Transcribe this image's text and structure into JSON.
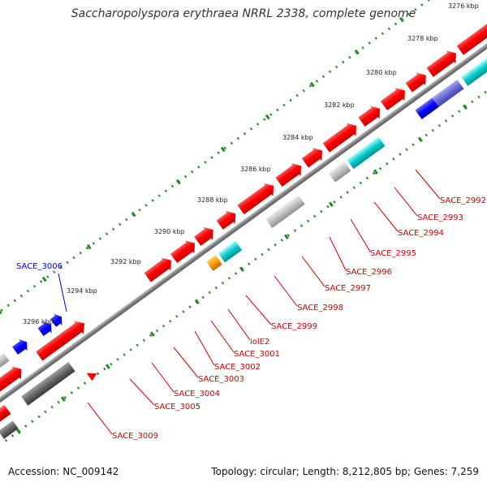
{
  "title": "Saccharopolyspora erythraea NRRL 2338, complete genome",
  "footer": {
    "accession": "Accession: NC_009142",
    "summary": "Topology: circular; Length: 8,212,805 bp; Genes: 7,259"
  },
  "colors": {
    "backbone": "#808080",
    "tick": "#2a8a2a",
    "cds": "#ff0000",
    "blue": "#0000ff",
    "cyan": "#00cccc",
    "violet": "#6b6bd6",
    "orange": "#ff9900",
    "gray": "#c0c0c0",
    "darkgray": "#666666",
    "label_red": "#cc0000",
    "label_blue": "#0000cc"
  },
  "scale_labels": [
    "3276 kbp",
    "3278 kbp",
    "3280 kbp",
    "3282 kbp",
    "3284 kbp",
    "3286 kbp",
    "3288 kbp",
    "3290 kbp",
    "3292 kbp",
    "3294 kbp",
    "3296 kbp"
  ],
  "gene_labels": [
    {
      "text": "SACE_2992",
      "strand": "reverse"
    },
    {
      "text": "SACE_2993",
      "strand": "reverse"
    },
    {
      "text": "SACE_2994",
      "strand": "reverse"
    },
    {
      "text": "SACE_2995",
      "strand": "reverse"
    },
    {
      "text": "SACE_2996",
      "strand": "reverse"
    },
    {
      "text": "SACE_2997",
      "strand": "reverse"
    },
    {
      "text": "SACE_2998",
      "strand": "reverse"
    },
    {
      "text": "SACE_2999",
      "strand": "reverse"
    },
    {
      "text": "iolE2",
      "strand": "reverse"
    },
    {
      "text": "SACE_3001",
      "strand": "reverse"
    },
    {
      "text": "SACE_3002",
      "strand": "reverse"
    },
    {
      "text": "SACE_3003",
      "strand": "reverse"
    },
    {
      "text": "SACE_3004",
      "strand": "reverse"
    },
    {
      "text": "SACE_3005",
      "strand": "reverse"
    },
    {
      "text": "SACE_3009",
      "strand": "reverse"
    },
    {
      "text": "SACE_3006",
      "strand": "forward"
    }
  ]
}
